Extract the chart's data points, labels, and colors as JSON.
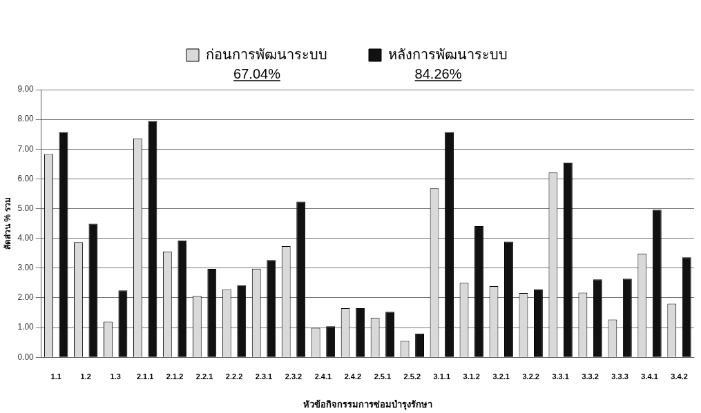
{
  "chart_data": {
    "type": "bar",
    "xlabel": "หัวข้อกิจกรรมการซ่อมบำรุงรักษา",
    "ylabel": "สัดส่วน % รวม",
    "categories": [
      "1.1",
      "1.2",
      "1.3",
      "2.1.1",
      "2.1.2",
      "2.2.1",
      "2.2.2",
      "2.3.1",
      "2.3.2",
      "2.4.1",
      "2.4.2",
      "2.5.1",
      "2.5.2",
      "3.1.1",
      "3.1.2",
      "3.2.1",
      "3.2.2",
      "3.3.1",
      "3.3.2",
      "3.3.3",
      "3.4.1",
      "3.4.2"
    ],
    "series": [
      {
        "name": "ก่อนการพัฒนาระบบ",
        "color": "#d9d9d9",
        "values": [
          6.83,
          3.87,
          1.2,
          7.36,
          3.56,
          2.06,
          2.29,
          2.98,
          3.74,
          0.99,
          1.65,
          1.33,
          0.55,
          5.68,
          2.5,
          2.39,
          2.16,
          6.21,
          2.17,
          1.27,
          3.49,
          1.8
        ]
      },
      {
        "name": "หลังการพัฒนาระบบ",
        "color": "#111111",
        "values": [
          7.57,
          4.49,
          2.25,
          7.94,
          3.93,
          2.97,
          2.42,
          3.27,
          5.23,
          1.04,
          1.65,
          1.53,
          0.8,
          7.57,
          4.41,
          3.89,
          2.29,
          6.55,
          2.62,
          2.64,
          4.96,
          3.36
        ]
      }
    ],
    "annotations": [
      "67.04%",
      "84.26%"
    ],
    "ylim": [
      0,
      9
    ],
    "yticks": [
      {
        "value": 0,
        "label": "0.00"
      },
      {
        "value": 1,
        "label": "1.00"
      },
      {
        "value": 2,
        "label": "2.00"
      },
      {
        "value": 3,
        "label": "3.00"
      },
      {
        "value": 4,
        "label": "4.00"
      },
      {
        "value": 5,
        "label": "5.00"
      },
      {
        "value": 6,
        "label": "6.00"
      },
      {
        "value": 7,
        "label": "7.00"
      },
      {
        "value": 8,
        "label": "8.00"
      },
      {
        "value": 9,
        "label": "9.00"
      }
    ],
    "grid": "y",
    "legend": "top"
  }
}
